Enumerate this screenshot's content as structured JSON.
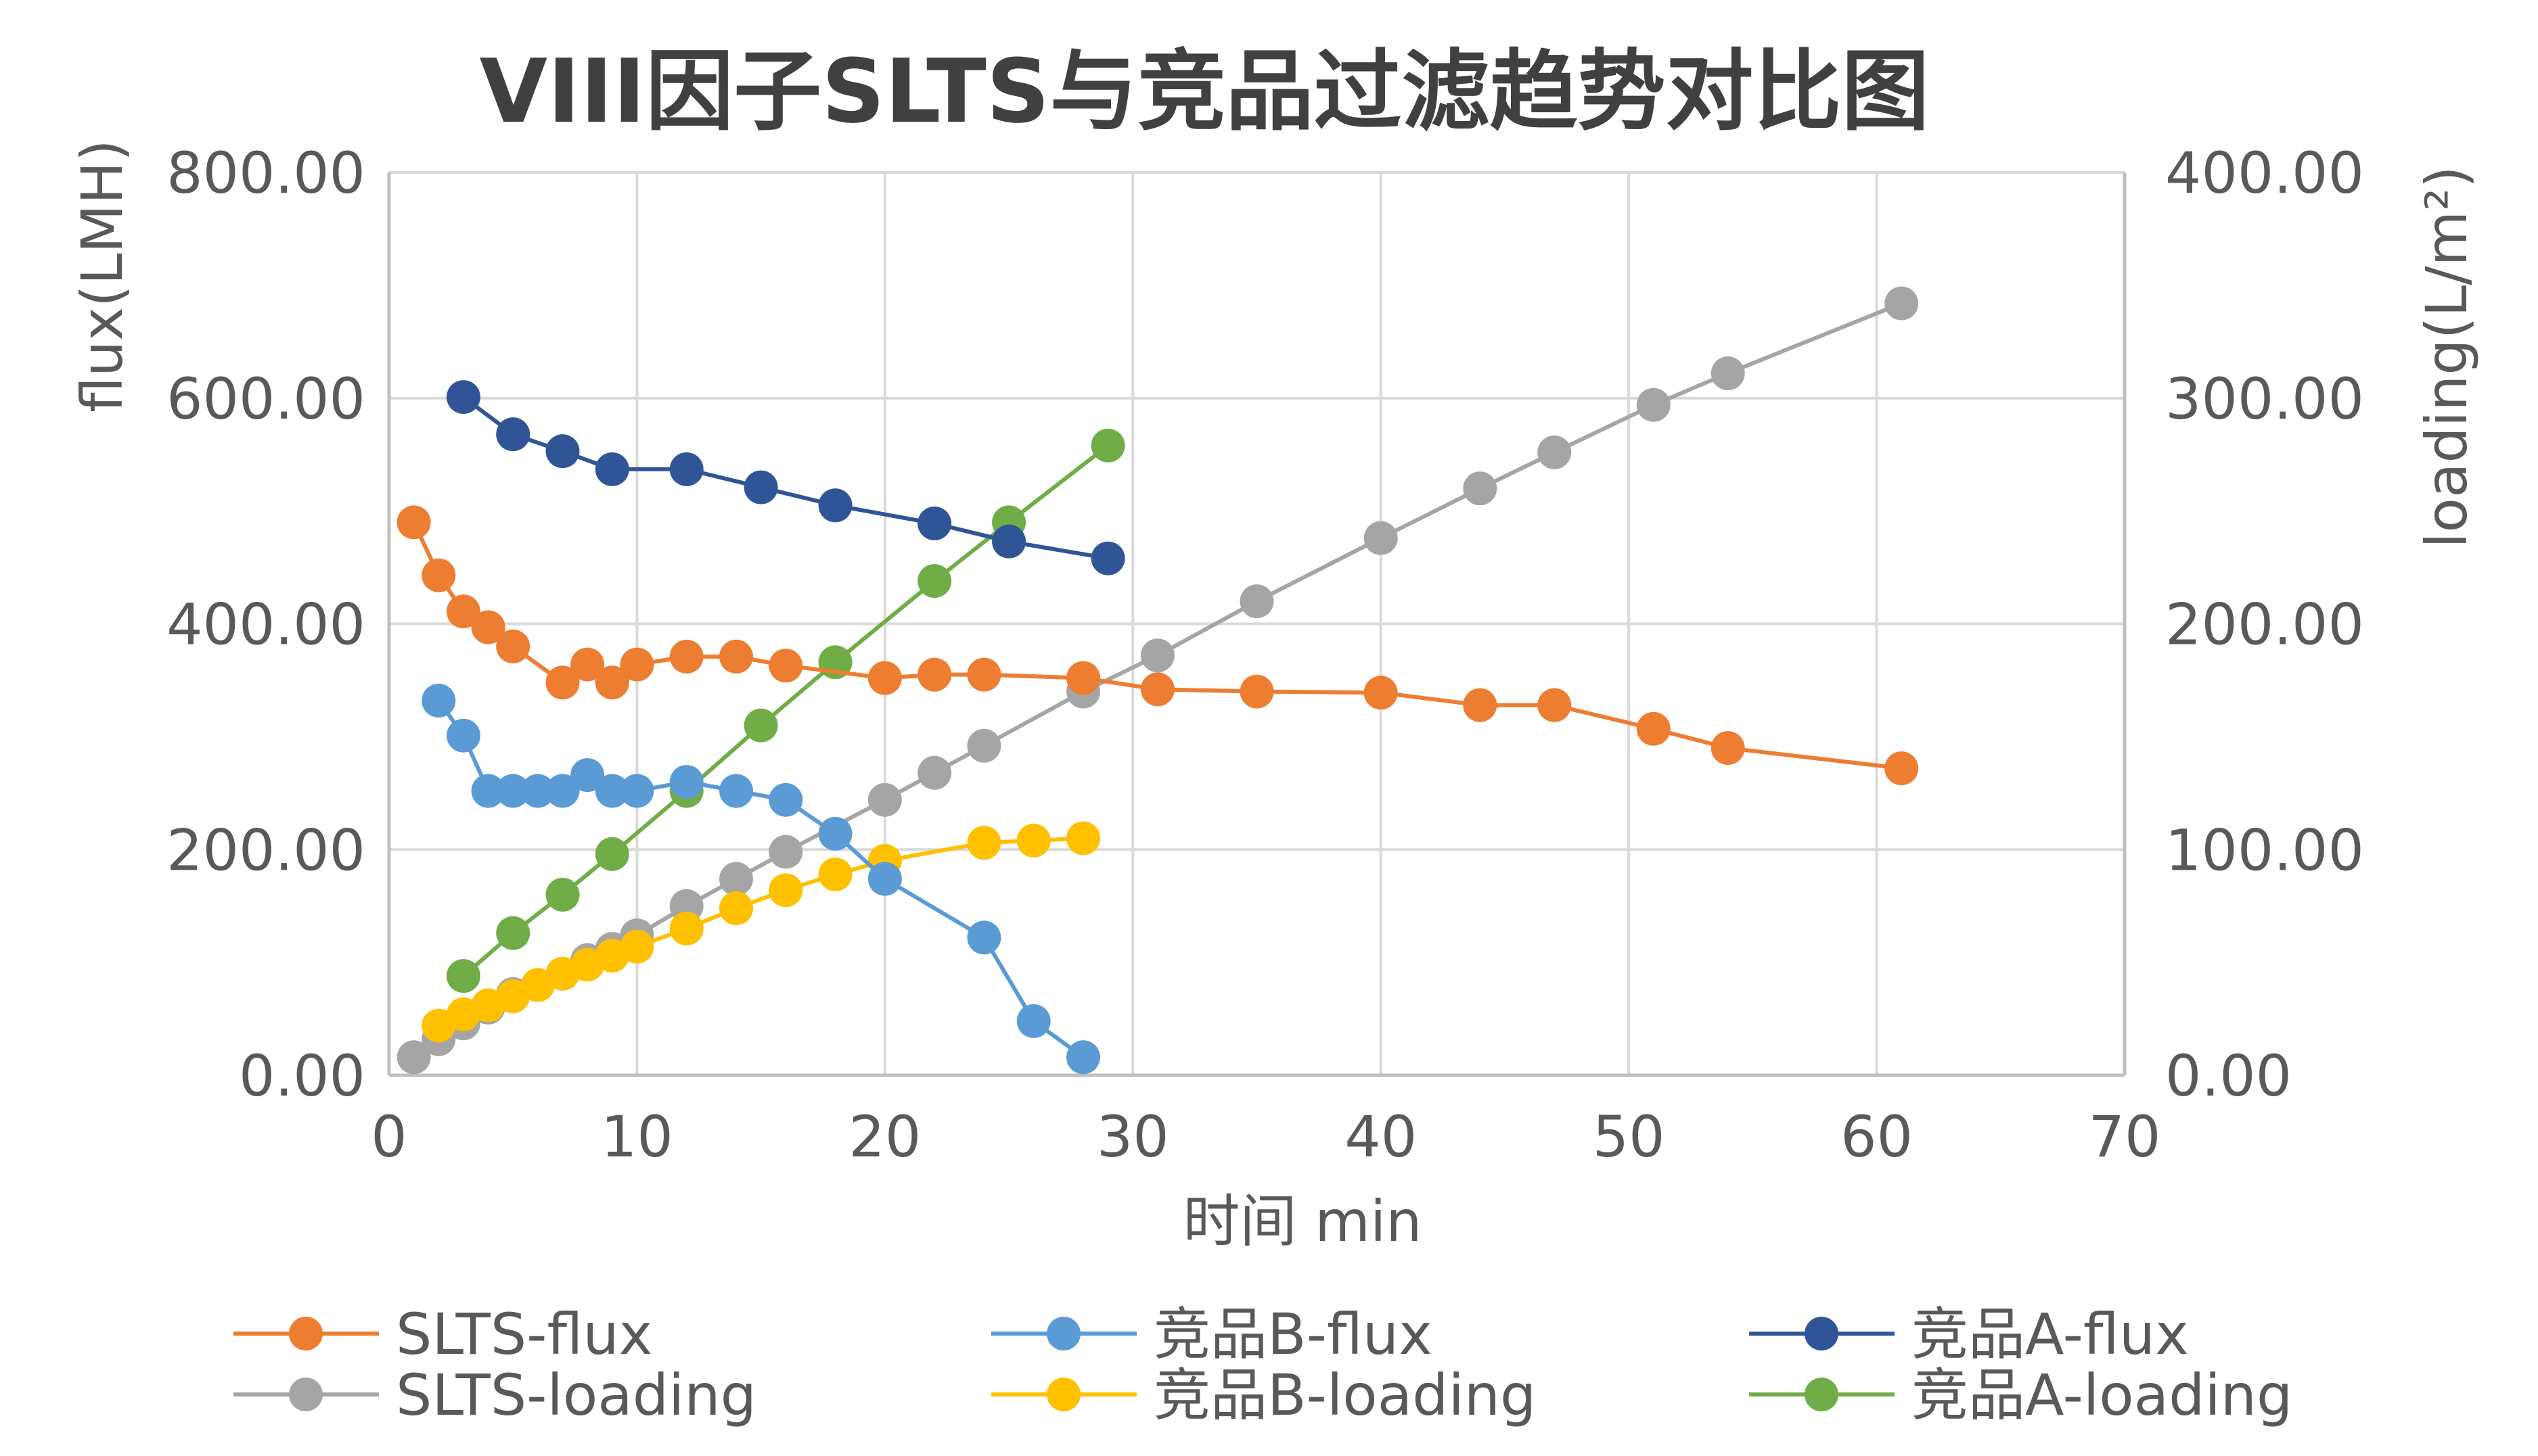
{
  "chart_data": {
    "type": "line",
    "title": "VIII因子SLTS与竞品过滤趋势对比图",
    "xlabel": "时间 min",
    "ylabel": "flux(LMH)",
    "y2label": "loading(L/m²)",
    "xlim": [
      0,
      70
    ],
    "ylim": [
      0,
      800
    ],
    "y2lim": [
      0,
      400
    ],
    "x_ticks": [
      "0",
      "10",
      "20",
      "30",
      "40",
      "50",
      "60",
      "70"
    ],
    "y_ticks": [
      "0.00",
      "200.00",
      "400.00",
      "600.00",
      "800.00"
    ],
    "y2_ticks": [
      "0.00",
      "100.00",
      "200.00",
      "300.00",
      "400.00"
    ],
    "grid": true,
    "legend_position": "bottom",
    "series": [
      {
        "name": "SLTS-flux",
        "axis": "left",
        "color": "#ED7D31",
        "x": [
          1,
          2,
          3,
          4,
          5,
          7,
          8,
          9,
          10,
          12,
          14,
          16,
          20,
          22,
          24,
          28,
          31,
          35,
          40,
          44,
          47,
          51,
          54,
          61
        ],
        "y": [
          490,
          443,
          411,
          397,
          380,
          348,
          364,
          348,
          364,
          371,
          371,
          363,
          352,
          355,
          355,
          352,
          342,
          340,
          339,
          328,
          328,
          307,
          290,
          272
        ]
      },
      {
        "name": "SLTS-loading",
        "axis": "right",
        "color": "#A5A5A5",
        "x": [
          1,
          2,
          3,
          4,
          5,
          7,
          8,
          9,
          10,
          12,
          14,
          16,
          20,
          22,
          24,
          28,
          31,
          35,
          40,
          44,
          47,
          51,
          54,
          61
        ],
        "y": [
          8,
          16,
          23,
          30,
          36,
          45,
          51,
          56,
          62,
          75,
          87,
          99,
          122,
          134,
          146,
          170,
          186,
          210,
          238,
          260,
          276,
          297,
          311,
          342
        ]
      },
      {
        "name": "竞品B-flux",
        "axis": "left",
        "color": "#5B9BD5",
        "x": [
          2,
          3,
          4,
          5,
          6,
          7,
          8,
          9,
          10,
          12,
          14,
          16,
          18,
          20,
          24,
          26,
          28
        ],
        "y": [
          332,
          301,
          252,
          252,
          252,
          252,
          266,
          252,
          252,
          260,
          252,
          244,
          214,
          174,
          122,
          48,
          16
        ]
      },
      {
        "name": "竞品B-loading",
        "axis": "right",
        "color": "#FFC000",
        "x": [
          2,
          3,
          4,
          5,
          6,
          7,
          8,
          9,
          10,
          12,
          14,
          16,
          18,
          20,
          24,
          26,
          28
        ],
        "y": [
          22,
          27,
          31,
          35,
          40,
          45,
          49,
          53,
          57,
          65,
          74,
          82,
          89,
          95,
          103,
          104,
          105
        ]
      },
      {
        "name": "竞品A-flux",
        "axis": "left",
        "color": "#2F5597",
        "x": [
          3,
          5,
          7,
          9,
          12,
          15,
          18,
          22,
          25,
          29
        ],
        "y": [
          601,
          568,
          553,
          537,
          537,
          521,
          505,
          489,
          473,
          458
        ]
      },
      {
        "name": "竞品A-loading",
        "axis": "right",
        "color": "#70AD47",
        "x": [
          3,
          5,
          7,
          9,
          12,
          15,
          18,
          22,
          25,
          29
        ],
        "y": [
          44,
          63,
          80,
          98,
          126,
          155,
          183,
          219,
          245,
          279
        ]
      }
    ]
  }
}
